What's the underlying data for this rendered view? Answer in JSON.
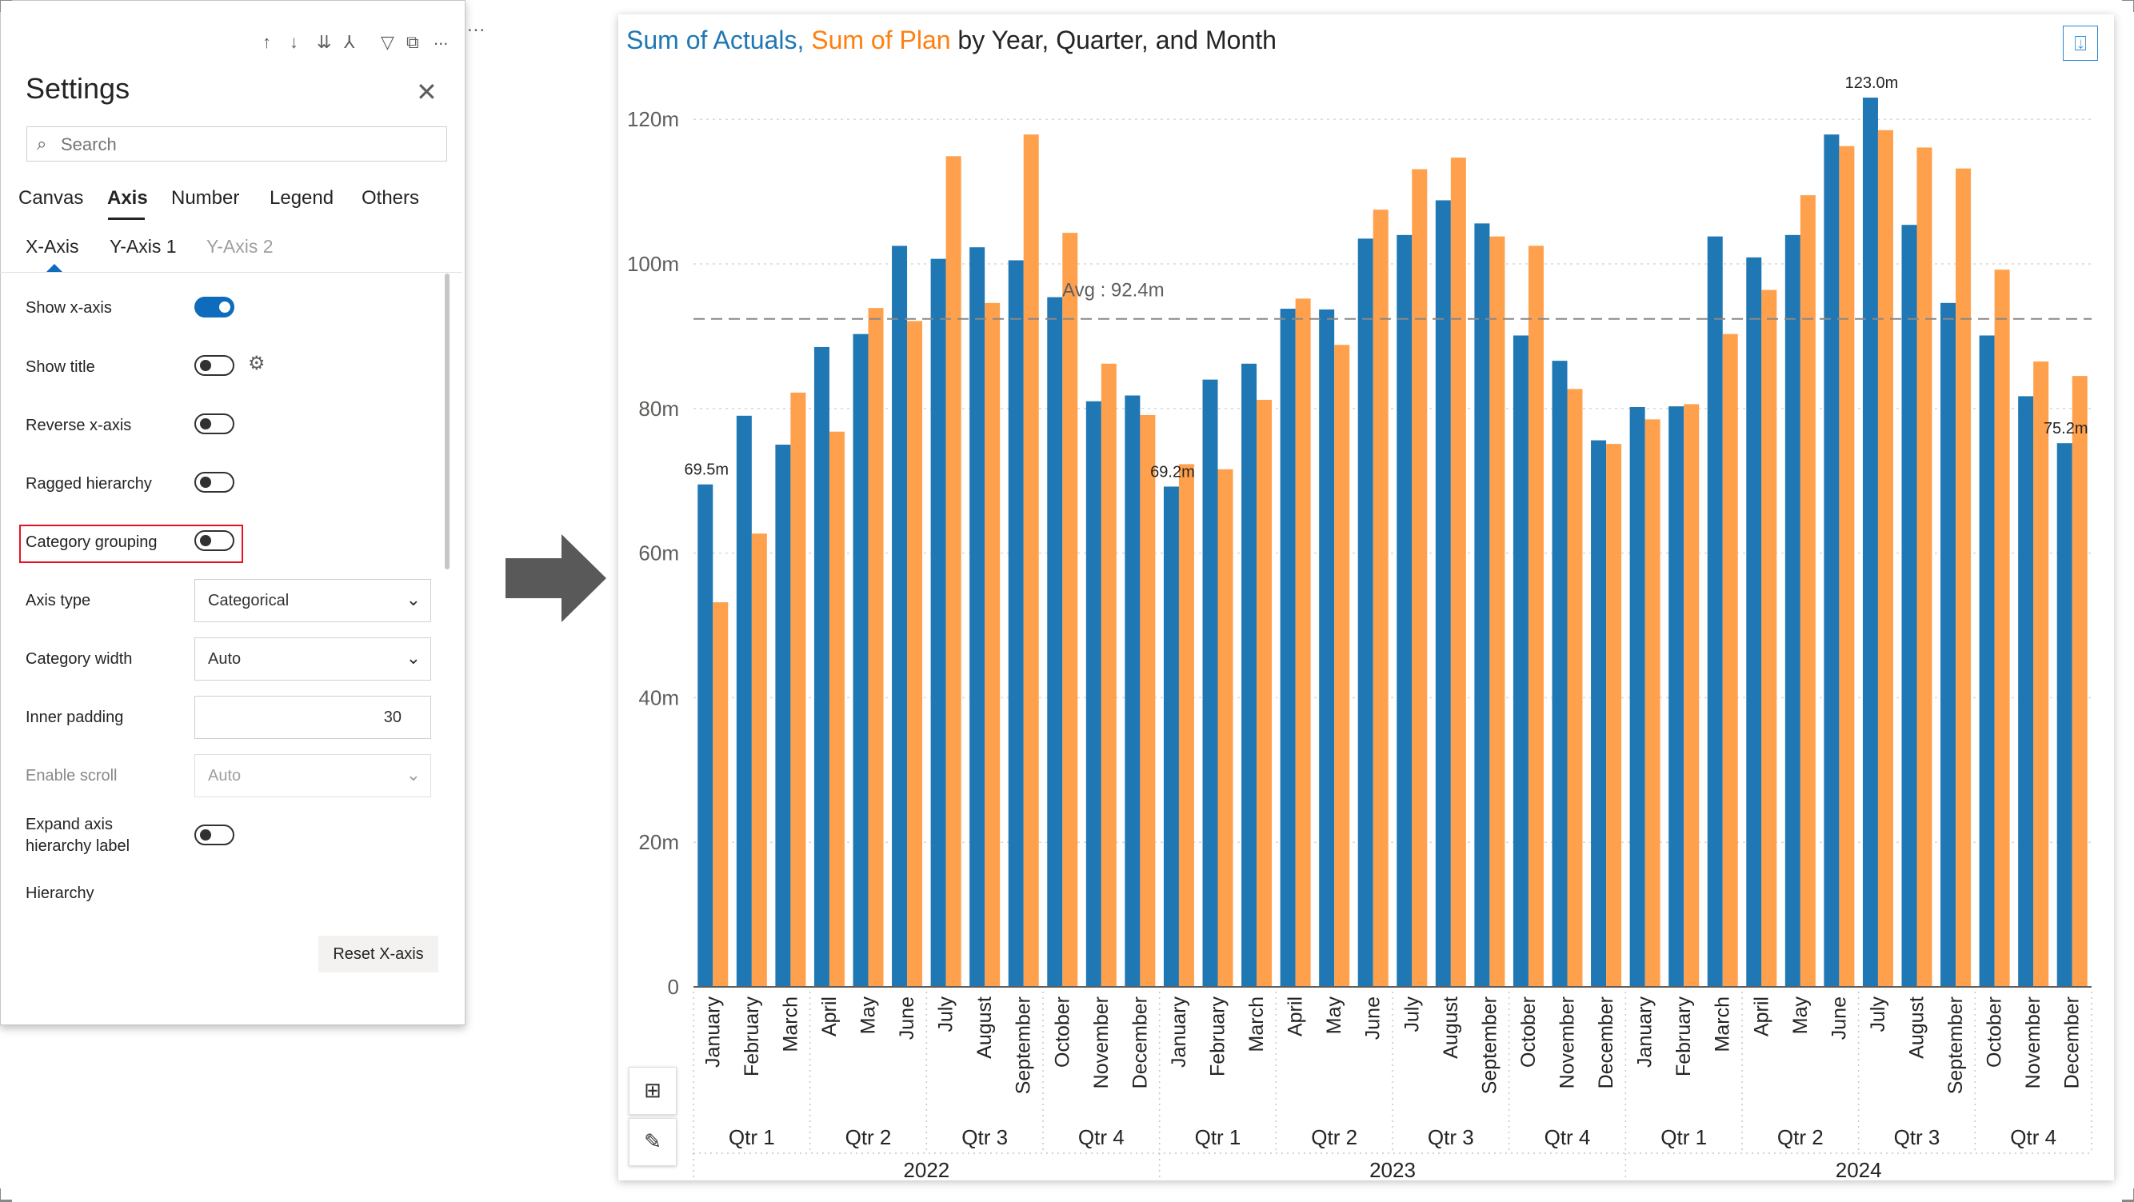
{
  "settings": {
    "more_menu": "...",
    "toolbar_icons": [
      "arrow-up-icon",
      "arrow-down-icon",
      "sort-icon",
      "hierarchy-icon",
      "filter-icon",
      "focus-icon",
      "more-icon"
    ],
    "toolbar_more": "...",
    "title": "Settings",
    "close": "✕",
    "search_placeholder": "Search",
    "tabs": [
      "Canvas",
      "Axis",
      "Number",
      "Legend",
      "Others"
    ],
    "active_tab": "Axis",
    "subtabs": [
      "X-Axis",
      "Y-Axis 1",
      "Y-Axis 2"
    ],
    "active_subtab": "X-Axis",
    "rows": {
      "show_x_axis": {
        "label": "Show x-axis",
        "on": true
      },
      "show_title": {
        "label": "Show title",
        "on": false
      },
      "reverse_x_axis": {
        "label": "Reverse x-axis",
        "on": false
      },
      "ragged_hierarchy": {
        "label": "Ragged hierarchy",
        "on": false
      },
      "category_grouping": {
        "label": "Category grouping",
        "on": false
      },
      "axis_type": {
        "label": "Axis type",
        "value": "Categorical"
      },
      "category_width": {
        "label": "Category width",
        "value": "Auto"
      },
      "inner_padding": {
        "label": "Inner padding",
        "value": "30"
      },
      "enable_scroll": {
        "label": "Enable scroll",
        "value": "Auto"
      },
      "expand_axis_label_1": "Expand axis",
      "expand_axis_label_2": "hierarchy label",
      "expand_axis": {
        "on": false
      },
      "hierarchy": {
        "label": "Hierarchy"
      }
    },
    "reset_button": "Reset X-axis"
  },
  "chart": {
    "title_series1": "Sum of Actuals,",
    "title_series2": "Sum of Plan",
    "title_rest": "by Year, Quarter, and Month",
    "export_icon": "⍗",
    "table_icon": "⊞",
    "edit_icon": "✎"
  },
  "chart_data": {
    "type": "bar",
    "title": "Sum of Actuals, Sum of Plan by Year, Quarter, and Month",
    "xlabel": "",
    "ylabel": "",
    "ylim": [
      0,
      130
    ],
    "yticks": [
      0,
      20,
      40,
      60,
      80,
      100,
      120
    ],
    "ytick_labels": [
      "0",
      "20m",
      "40m",
      "60m",
      "80m",
      "100m",
      "120m"
    ],
    "grid": true,
    "legend": "none",
    "colors": {
      "actuals": "#1f77b4",
      "plan": "#ffa04d"
    },
    "months": [
      "January",
      "February",
      "March",
      "April",
      "May",
      "June",
      "July",
      "August",
      "September",
      "October",
      "November",
      "December",
      "January",
      "February",
      "March",
      "April",
      "May",
      "June",
      "July",
      "August",
      "September",
      "October",
      "November",
      "December",
      "January",
      "February",
      "March",
      "April",
      "May",
      "June",
      "July",
      "August",
      "September",
      "October",
      "November",
      "December"
    ],
    "quarters": [
      "Qtr 1",
      "Qtr 2",
      "Qtr 3",
      "Qtr 4",
      "Qtr 1",
      "Qtr 2",
      "Qtr 3",
      "Qtr 4",
      "Qtr 1",
      "Qtr 2",
      "Qtr 3",
      "Qtr 4"
    ],
    "years": [
      "2022",
      "2023",
      "2024"
    ],
    "series": [
      {
        "name": "Sum of Actuals",
        "values": [
          69.5,
          79,
          75,
          88.5,
          90.3,
          102.5,
          100.7,
          102.3,
          100.5,
          95.4,
          81,
          81.8,
          69.2,
          84,
          86.2,
          93.8,
          93.7,
          103.5,
          104,
          108.8,
          105.6,
          90.1,
          86.6,
          75.6,
          80.2,
          80.3,
          103.8,
          100.9,
          104,
          117.9,
          123.0,
          105.4,
          94.6,
          90.1,
          81.7,
          75.2
        ]
      },
      {
        "name": "Sum of Plan",
        "values": [
          53.2,
          62.7,
          82.2,
          76.8,
          93.9,
          92.1,
          114.9,
          94.6,
          117.9,
          104.3,
          86.2,
          79.1,
          72.3,
          71.6,
          81.2,
          95.2,
          88.8,
          107.5,
          113.1,
          114.7,
          103.8,
          102.5,
          82.7,
          75.1,
          78.5,
          80.6,
          90.3,
          96.4,
          109.5,
          116.3,
          118.5,
          116.1,
          113.2,
          99.2,
          86.5,
          84.5
        ]
      }
    ],
    "data_labels": [
      {
        "index": 0,
        "series": 0,
        "text": "69.5m"
      },
      {
        "index": 12,
        "series": 0,
        "text": "69.2m"
      },
      {
        "index": 30,
        "series": 0,
        "text": "123.0m"
      },
      {
        "index": 35,
        "series": 0,
        "text": "75.2m"
      }
    ],
    "average_line": {
      "value": 92.4,
      "label": "Avg : 92.4m"
    }
  }
}
